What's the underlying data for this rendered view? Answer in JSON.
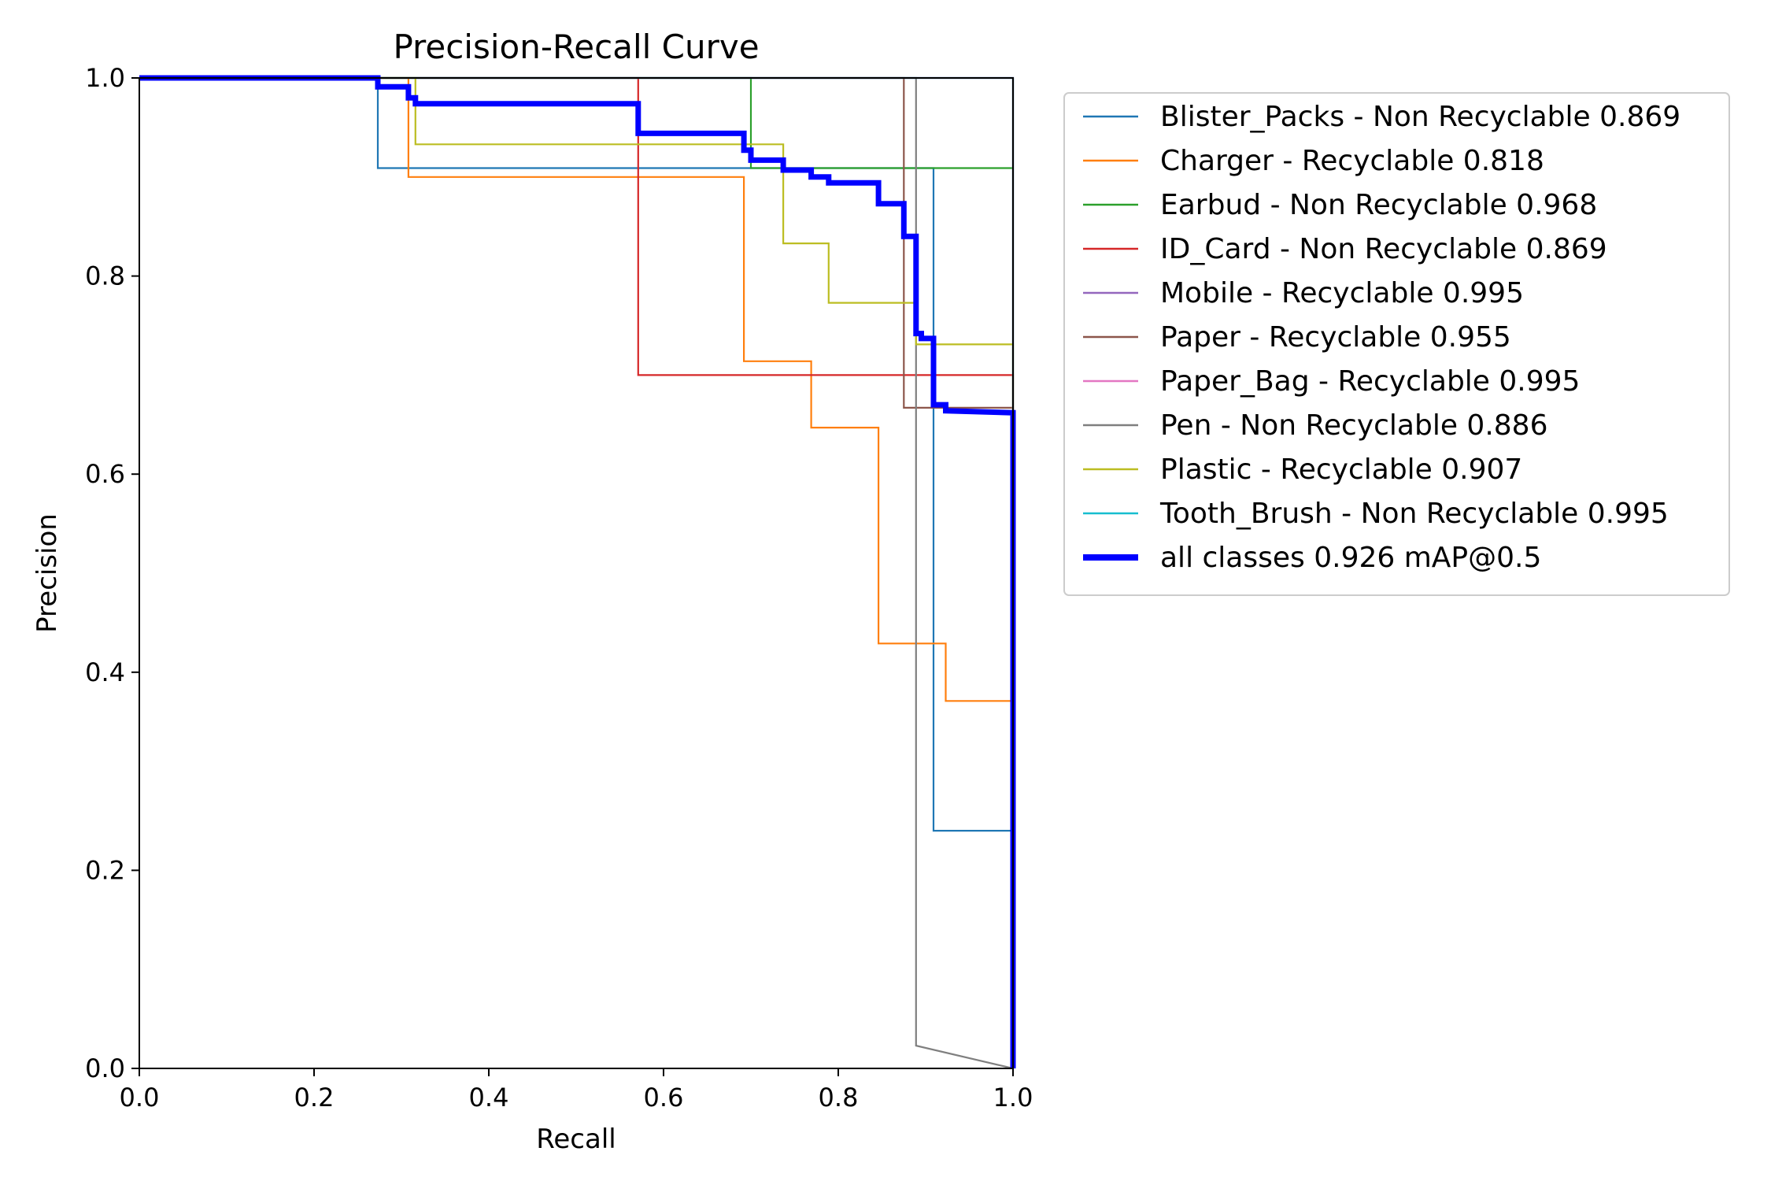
{
  "chart_data": {
    "type": "line",
    "title": "Precision-Recall Curve",
    "xlabel": "Recall",
    "ylabel": "Precision",
    "xlim": [
      0,
      1
    ],
    "ylim": [
      0,
      1
    ],
    "xticks": [
      "0.0",
      "0.2",
      "0.4",
      "0.6",
      "0.8",
      "1.0"
    ],
    "yticks": [
      "0.0",
      "0.2",
      "0.4",
      "0.6",
      "0.8",
      "1.0"
    ],
    "grid": false,
    "legend_position": "outside-top-right",
    "series": [
      {
        "name": "Blister_Packs - Non Recyclable 0.869",
        "color": "#1f77b4",
        "points": [
          [
            0,
            1
          ],
          [
            0.273,
            1
          ],
          [
            0.273,
            0.909
          ],
          [
            0.909,
            0.909
          ],
          [
            0.909,
            0.24
          ],
          [
            1,
            0.24
          ],
          [
            1,
            0
          ]
        ]
      },
      {
        "name": "Charger - Recyclable 0.818",
        "color": "#ff7f0e",
        "points": [
          [
            0,
            1
          ],
          [
            0.308,
            1
          ],
          [
            0.308,
            0.9
          ],
          [
            0.692,
            0.9
          ],
          [
            0.692,
            0.714
          ],
          [
            0.769,
            0.714
          ],
          [
            0.769,
            0.647
          ],
          [
            0.846,
            0.647
          ],
          [
            0.846,
            0.429
          ],
          [
            0.923,
            0.429
          ],
          [
            0.923,
            0.371
          ],
          [
            1,
            0.371
          ],
          [
            1,
            0
          ]
        ]
      },
      {
        "name": "Earbud - Non Recyclable 0.968",
        "color": "#2ca02c",
        "points": [
          [
            0,
            1
          ],
          [
            0.7,
            1
          ],
          [
            0.7,
            0.909
          ],
          [
            1,
            0.909
          ],
          [
            1,
            1
          ],
          [
            1,
            0
          ]
        ]
      },
      {
        "name": "ID_Card - Non Recyclable 0.869",
        "color": "#d62728",
        "points": [
          [
            0,
            1
          ],
          [
            0.571,
            1
          ],
          [
            0.571,
            0.7
          ],
          [
            1,
            0.7
          ],
          [
            1,
            0
          ]
        ]
      },
      {
        "name": "Mobile - Recyclable 0.995",
        "color": "#9467bd",
        "points": [
          [
            0,
            1
          ],
          [
            1,
            1
          ],
          [
            1,
            0
          ]
        ]
      },
      {
        "name": "Paper - Recyclable 0.955",
        "color": "#8c564b",
        "points": [
          [
            0,
            1
          ],
          [
            0.875,
            1
          ],
          [
            0.875,
            0.667
          ],
          [
            1,
            0.667
          ],
          [
            1,
            0
          ]
        ]
      },
      {
        "name": "Paper_Bag - Recyclable 0.995",
        "color": "#e377c2",
        "points": [
          [
            0,
            1
          ],
          [
            1,
            1
          ],
          [
            1,
            0
          ]
        ]
      },
      {
        "name": "Pen - Non Recyclable 0.886",
        "color": "#7f7f7f",
        "points": [
          [
            0,
            1
          ],
          [
            0.889,
            1
          ],
          [
            0.889,
            0.023
          ],
          [
            1,
            0
          ]
        ]
      },
      {
        "name": "Plastic - Recyclable 0.907",
        "color": "#bcbd22",
        "points": [
          [
            0,
            1
          ],
          [
            0.316,
            1
          ],
          [
            0.316,
            0.933
          ],
          [
            0.737,
            0.933
          ],
          [
            0.737,
            0.833
          ],
          [
            0.789,
            0.833
          ],
          [
            0.789,
            0.773
          ],
          [
            0.889,
            0.773
          ],
          [
            0.889,
            0.731
          ],
          [
            1,
            0.731
          ],
          [
            1,
            0
          ]
        ]
      },
      {
        "name": "Tooth_Brush - Non Recyclable 0.995",
        "color": "#17becf",
        "points": [
          [
            0,
            1
          ],
          [
            1,
            1
          ],
          [
            1,
            0
          ]
        ]
      },
      {
        "name": "all classes 0.926 mAP@0.5",
        "color": "#0000ff",
        "bold": true,
        "points": [
          [
            0,
            1
          ],
          [
            0.273,
            1
          ],
          [
            0.273,
            0.991
          ],
          [
            0.308,
            0.991
          ],
          [
            0.308,
            0.98
          ],
          [
            0.316,
            0.98
          ],
          [
            0.316,
            0.974
          ],
          [
            0.571,
            0.974
          ],
          [
            0.571,
            0.944
          ],
          [
            0.692,
            0.944
          ],
          [
            0.692,
            0.927
          ],
          [
            0.7,
            0.927
          ],
          [
            0.7,
            0.917
          ],
          [
            0.737,
            0.917
          ],
          [
            0.737,
            0.907
          ],
          [
            0.769,
            0.907
          ],
          [
            0.769,
            0.9
          ],
          [
            0.789,
            0.9
          ],
          [
            0.789,
            0.894
          ],
          [
            0.846,
            0.894
          ],
          [
            0.846,
            0.873
          ],
          [
            0.875,
            0.873
          ],
          [
            0.875,
            0.84
          ],
          [
            0.889,
            0.84
          ],
          [
            0.889,
            0.742
          ],
          [
            0.895,
            0.742
          ],
          [
            0.895,
            0.737
          ],
          [
            0.909,
            0.737
          ],
          [
            0.909,
            0.67
          ],
          [
            0.923,
            0.67
          ],
          [
            0.923,
            0.664
          ],
          [
            1,
            0.662
          ],
          [
            1,
            0
          ]
        ]
      }
    ]
  }
}
